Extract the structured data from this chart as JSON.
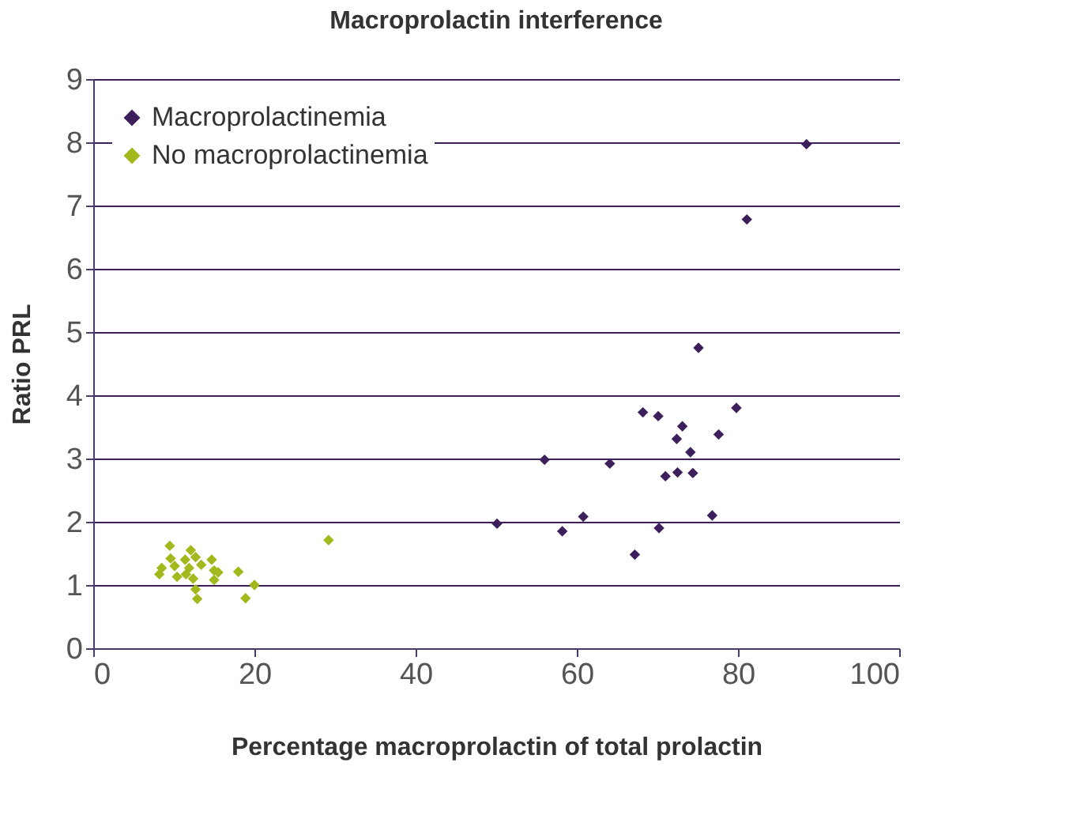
{
  "chart_data": {
    "type": "scatter",
    "title": "Macroprolactin interference",
    "xlabel": "Percentage macroprolactin of total prolactin",
    "ylabel": "Ratio PRL",
    "series": [
      {
        "name": "Macroprolactinemia",
        "color": "#3d1f5c",
        "x": [
          50.1,
          56.0,
          58.2,
          60.8,
          64.1,
          67.2,
          68.2,
          70.1,
          70.2,
          71.0,
          72.4,
          72.5,
          73.1,
          74.1,
          74.4,
          75.1,
          76.8,
          77.6,
          79.8,
          81.1,
          88.5
        ],
        "values": [
          1.97,
          2.98,
          1.85,
          2.08,
          2.92,
          1.48,
          3.73,
          3.67,
          1.9,
          2.72,
          3.31,
          2.78,
          3.51,
          3.1,
          2.77,
          4.75,
          2.1,
          3.38,
          3.8,
          6.78,
          7.97
        ]
      },
      {
        "name": "No macroprolactinemia",
        "color": "#a3b81c",
        "x": [
          8.2,
          8.5,
          9.5,
          9.6,
          10.1,
          10.4,
          11.4,
          11.5,
          12.1,
          12.4,
          12.7,
          11.9,
          12.4,
          12.7,
          12.9,
          13.4,
          14.7,
          15.0,
          15.0,
          15.5,
          18.0,
          18.9,
          20.0,
          29.2
        ],
        "values": [
          1.17,
          1.27,
          1.62,
          1.42,
          1.3,
          1.13,
          1.4,
          1.17,
          1.55,
          null,
          1.44,
          1.27,
          1.1,
          0.93,
          0.78,
          1.32,
          1.4,
          1.23,
          1.08,
          1.2,
          1.21,
          0.79,
          1.0,
          1.71
        ]
      }
    ],
    "xlim": [
      0,
      100
    ],
    "xticks": [
      0,
      20,
      40,
      60,
      80,
      100
    ],
    "ylim": [
      0,
      9
    ],
    "yticks": [
      0,
      1,
      2,
      3,
      4,
      5,
      6,
      7,
      8,
      9
    ],
    "grid": "y",
    "legend": "top left",
    "marker": "diamond"
  }
}
